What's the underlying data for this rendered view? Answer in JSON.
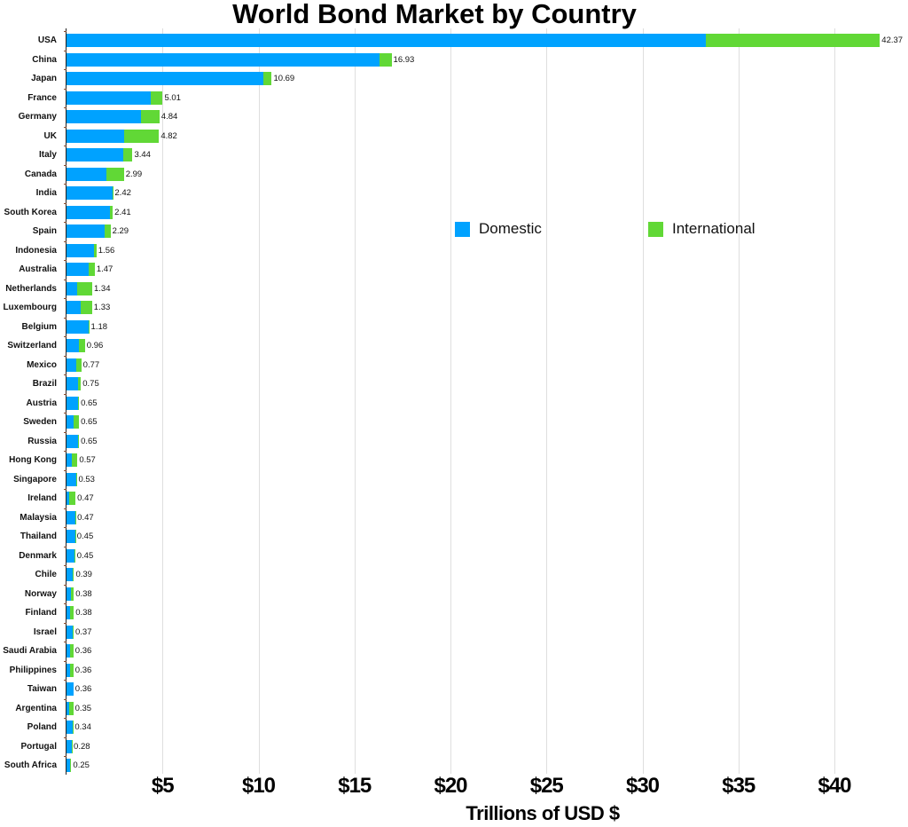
{
  "chart_data": {
    "type": "bar",
    "orientation": "horizontal",
    "stacked": true,
    "title": "World Bond Market by Country",
    "xlabel": "Trillions of USD $",
    "ylabel": "",
    "xlim": [
      0,
      43.5
    ],
    "x_ticks": [
      "$5",
      "$10",
      "$15",
      "$20",
      "$25",
      "$30",
      "$35",
      "$40"
    ],
    "x_tick_values": [
      5,
      10,
      15,
      20,
      25,
      30,
      35,
      40
    ],
    "grid": "vertical",
    "legend_position": "inside-right",
    "colors": {
      "Domestic": "#00a2ff",
      "International": "#61d836"
    },
    "categories": [
      "USA",
      "China",
      "Japan",
      "France",
      "Germany",
      "UK",
      "Italy",
      "Canada",
      "India",
      "South Korea",
      "Spain",
      "Indonesia",
      "Australia",
      "Netherlands",
      "Luxembourg",
      "Belgium",
      "Switzerland",
      "Mexico",
      "Brazil",
      "Austria",
      "Sweden",
      "Russia",
      "Hong Kong",
      "Singapore",
      "Ireland",
      "Malaysia",
      "Thailand",
      "Denmark",
      "Chile",
      "Norway",
      "Finland",
      "Israel",
      "Saudi Arabia",
      "Philippines",
      "Taiwan",
      "Argentina",
      "Poland",
      "Portugal",
      "South Africa"
    ],
    "totals": [
      42.37,
      16.93,
      10.69,
      5.01,
      4.84,
      4.82,
      3.44,
      2.99,
      2.42,
      2.41,
      2.29,
      1.56,
      1.47,
      1.34,
      1.33,
      1.18,
      0.96,
      0.77,
      0.75,
      0.65,
      0.65,
      0.65,
      0.57,
      0.53,
      0.47,
      0.47,
      0.45,
      0.45,
      0.39,
      0.38,
      0.38,
      0.37,
      0.36,
      0.36,
      0.36,
      0.35,
      0.34,
      0.28,
      0.25
    ],
    "series": [
      {
        "name": "Domestic",
        "values": [
          33.3,
          16.3,
          10.25,
          4.4,
          3.9,
          3.0,
          2.95,
          2.1,
          2.38,
          2.25,
          2.0,
          1.44,
          1.15,
          0.55,
          0.75,
          1.15,
          0.65,
          0.5,
          0.6,
          0.58,
          0.38,
          0.6,
          0.27,
          0.5,
          0.15,
          0.45,
          0.44,
          0.4,
          0.33,
          0.22,
          0.18,
          0.34,
          0.2,
          0.2,
          0.36,
          0.15,
          0.32,
          0.27,
          0.2
        ]
      },
      {
        "name": "International",
        "values": [
          9.07,
          0.63,
          0.44,
          0.61,
          0.94,
          1.82,
          0.49,
          0.89,
          0.04,
          0.16,
          0.29,
          0.12,
          0.32,
          0.79,
          0.58,
          0.03,
          0.31,
          0.27,
          0.15,
          0.07,
          0.27,
          0.05,
          0.3,
          0.03,
          0.32,
          0.02,
          0.01,
          0.05,
          0.06,
          0.16,
          0.2,
          0.03,
          0.16,
          0.16,
          0.0,
          0.2,
          0.02,
          0.01,
          0.05
        ]
      }
    ]
  },
  "legend": {
    "items": [
      {
        "label": "Domestic",
        "color": "#00a2ff"
      },
      {
        "label": "International",
        "color": "#61d836"
      }
    ]
  }
}
